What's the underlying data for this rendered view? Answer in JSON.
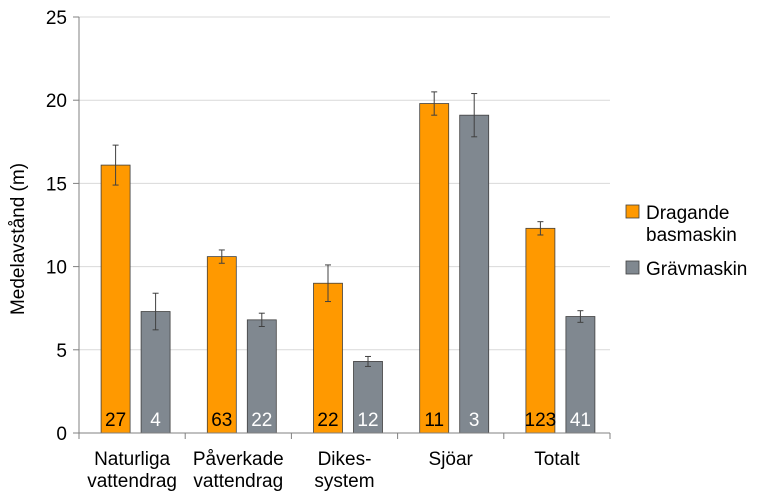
{
  "chart_data": {
    "type": "bar",
    "ylabel": "Medelavstånd (m)",
    "ylim": [
      0,
      25
    ],
    "yticks": [
      0,
      5,
      10,
      15,
      20,
      25
    ],
    "grid": true,
    "legend_position": "right",
    "categories": [
      [
        "Naturliga",
        "vattendrag"
      ],
      [
        "Påverkade",
        "vattendrag"
      ],
      [
        "Dikes-",
        "system"
      ],
      [
        "Sjöar"
      ],
      [
        "Totalt"
      ]
    ],
    "series": [
      {
        "name": [
          "Dragande",
          "basmaskin"
        ],
        "color": "#FF9900",
        "label_color": "#000000",
        "values": [
          16.1,
          10.6,
          9.0,
          19.8,
          12.3
        ],
        "error": [
          1.2,
          0.4,
          1.1,
          0.7,
          0.4
        ],
        "n": [
          "27",
          "63",
          "22",
          "11",
          "123"
        ]
      },
      {
        "name": [
          "Grävmaskin"
        ],
        "color": "#808890",
        "label_color": "#ffffff",
        "values": [
          7.3,
          6.8,
          4.3,
          19.1,
          7.0
        ],
        "error": [
          1.1,
          0.4,
          0.3,
          1.3,
          0.35
        ],
        "n": [
          "4",
          "22",
          "12",
          "3",
          "41"
        ]
      }
    ]
  }
}
